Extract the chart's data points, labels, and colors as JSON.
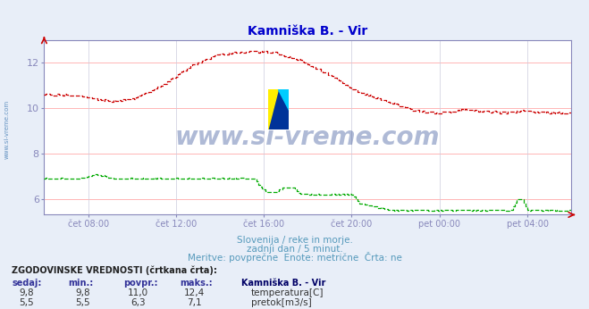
{
  "title": "Kamniška B. - Vir",
  "title_color": "#0000cc",
  "fig_bg_color": "#e8eef8",
  "plot_bg_color": "#ffffff",
  "grid_color_h": "#ffaaaa",
  "grid_color_v": "#ccccdd",
  "xlabel_color": "#5588bb",
  "ylabel_color": "#cc0000",
  "axis_color": "#8888bb",
  "xtick_labels": [
    "čet 08:00",
    "čet 12:00",
    "čet 16:00",
    "čet 20:00",
    "pet 00:00",
    "pet 04:00"
  ],
  "ytick_left": [
    6,
    8,
    10,
    12
  ],
  "ylim_left": [
    5.3,
    13.0
  ],
  "xlim": [
    0,
    288
  ],
  "temp_color": "#cc0000",
  "flow_color": "#00aa00",
  "watermark_text": "www.si-vreme.com",
  "watermark_color": "#1a3a8a",
  "watermark_alpha": 0.35,
  "subtitle1": "Slovenija / reke in morje.",
  "subtitle2": "zadnji dan / 5 minut.",
  "subtitle3": "Meritve: povprečne  Enote: metrične  Črta: ne",
  "subtitle_color": "#5599bb",
  "table_header": "ZGODOVINSKE VREDNOSTI (črtkana črta):",
  "col_headers": [
    "sedaj:",
    "min.:",
    "povpr.:",
    "maks.:",
    "Kamniška B. - Vir"
  ],
  "row_temp": [
    "9,8",
    "9,8",
    "11,0",
    "12,4",
    "temperatura[C]"
  ],
  "row_flow": [
    "5,5",
    "5,5",
    "6,3",
    "7,1",
    "pretok[m3/s]"
  ],
  "legend_temp_color": "#cc0000",
  "legend_flow_color": "#00aa00",
  "xtick_positions": [
    24,
    72,
    120,
    168,
    216,
    264
  ]
}
